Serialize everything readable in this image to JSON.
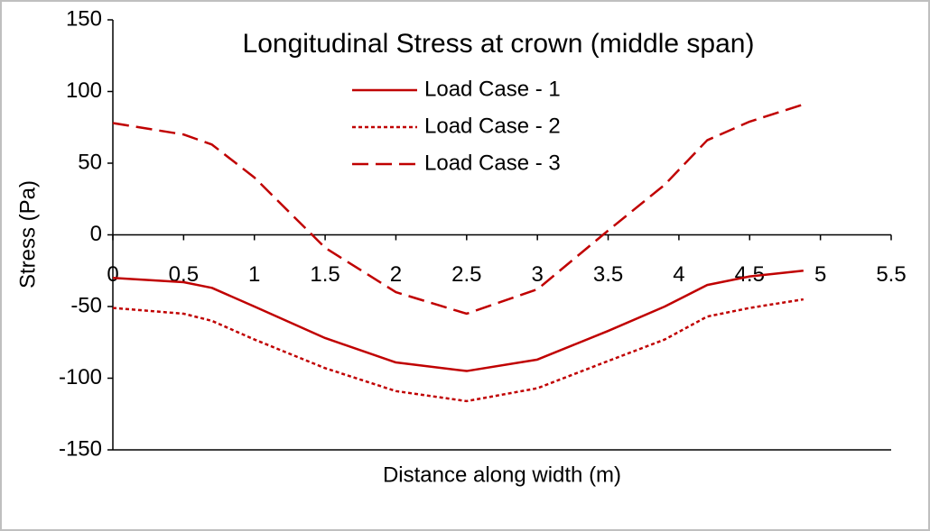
{
  "chart_data": {
    "type": "line",
    "title": "Longitudinal Stress at crown (middle span)",
    "x_label": "Distance along width (m)",
    "y_label": "Stress (Pa)",
    "x": [
      0,
      0.5,
      0.7,
      1,
      1.5,
      2,
      2.5,
      3,
      3.5,
      3.9,
      4.2,
      4.5,
      4.88
    ],
    "series": [
      {
        "name": "Load Case - 1",
        "color": "#c00000",
        "dash": "solid",
        "values": [
          -30,
          -33,
          -37,
          -50,
          -72,
          -89,
          -95,
          -87,
          -67,
          -50,
          -35,
          -29,
          -25
        ]
      },
      {
        "name": "Load Case - 2",
        "color": "#c00000",
        "dash": "dotted",
        "values": [
          -51,
          -55,
          -60,
          -73,
          -93,
          -109,
          -116,
          -107,
          -88,
          -73,
          -57,
          -51,
          -45
        ]
      },
      {
        "name": "Load Case - 3",
        "color": "#c00000",
        "dash": "dashed",
        "values": [
          78,
          70,
          63,
          40,
          -9,
          -40,
          -55,
          -38,
          3,
          35,
          66,
          79,
          91
        ]
      }
    ],
    "xlim": [
      0,
      5.5
    ],
    "xticks": [
      0,
      0.5,
      1,
      1.5,
      2,
      2.5,
      3,
      3.5,
      4,
      4.5,
      5,
      5.5
    ],
    "ylim": [
      -150,
      150
    ],
    "yticks": [
      -150,
      -100,
      -50,
      0,
      50,
      100,
      150
    ],
    "grid": false
  }
}
